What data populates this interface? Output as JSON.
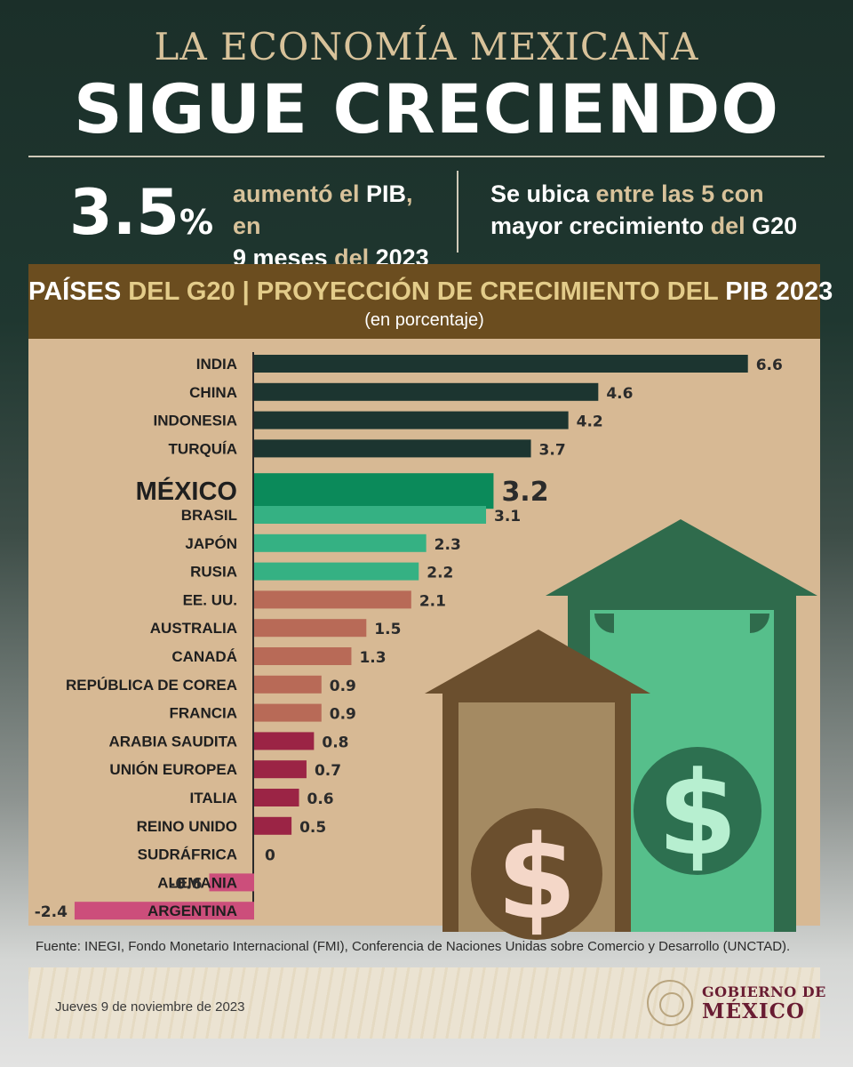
{
  "header": {
    "kicker": "LA ECONOMÍA MEXICANA",
    "headline": "SIGUE CRECIENDO"
  },
  "stat": {
    "value": "3.5",
    "unit": "%",
    "text_a": "aumentó el ",
    "text_b": "PIB",
    "text_c": ", en",
    "text_d": "9 meses ",
    "text_e": "del ",
    "text_f": "2023"
  },
  "ranking": {
    "text_a": "Se ubica ",
    "text_b": "entre las 5 con",
    "text_c": "mayor crecimiento ",
    "text_d": "del ",
    "text_e": "G20"
  },
  "panel": {
    "title_a": "PAÍSES ",
    "title_b": "DEL G20 | ",
    "title_c": "PROYECCIÓN DE CRECIMIENTO DEL ",
    "title_d": "PIB 2023",
    "subtitle": "(en porcentaje)"
  },
  "chart_data": {
    "type": "bar",
    "orientation": "horizontal",
    "title": "PAÍSES DEL G20 | PROYECCIÓN DE CRECIMIENTO DEL PIB 2023",
    "subtitle": "(en porcentaje)",
    "categories": [
      "INDIA",
      "CHINA",
      "INDONESIA",
      "TURQUÍA",
      "MÉXICO",
      "BRASIL",
      "JAPÓN",
      "RUSIA",
      "EE. UU.",
      "AUSTRALIA",
      "CANADÁ",
      "REPÚBLICA DE COREA",
      "FRANCIA",
      "ARABIA SAUDITA",
      "UNIÓN EUROPEA",
      "ITALIA",
      "REINO UNIDO",
      "SUDRÁFRICA",
      "ALEMANIA",
      "ARGENTINA"
    ],
    "values": [
      6.6,
      4.6,
      4.2,
      3.7,
      3.2,
      3.1,
      2.3,
      2.2,
      2.1,
      1.5,
      1.3,
      0.9,
      0.9,
      0.8,
      0.7,
      0.6,
      0.5,
      0,
      -0.6,
      -2.4
    ],
    "value_labels": [
      "6.6",
      "4.6",
      "4.2",
      "3.7",
      "3.2",
      "3.1",
      "2.3",
      "2.2",
      "2.1",
      "1.5",
      "1.3",
      "0.9",
      "0.9",
      "0.8",
      "0.7",
      "0.6",
      "0.5",
      "0",
      "-0.6",
      "-2.4"
    ],
    "highlight": "MÉXICO",
    "colors": [
      "#1c3530",
      "#1c3530",
      "#1c3530",
      "#1c3530",
      "#0b8a5a",
      "#35b183",
      "#35b183",
      "#35b183",
      "#b86a57",
      "#b86a57",
      "#b86a57",
      "#b86a57",
      "#b86a57",
      "#9b2445",
      "#9b2445",
      "#9b2445",
      "#9b2445",
      "#9b2445",
      "#cc4e7b",
      "#cc4e7b"
    ],
    "xlim": [
      -2.4,
      6.6
    ],
    "grid": false,
    "legend": "none"
  },
  "footer": {
    "source": "Fuente: INEGI, Fondo Monetario Internacional (FMI), Conferencia de Naciones Unidas sobre Comercio y Desarrollo (UNCTAD).",
    "date": "Jueves 9 de noviembre de 2023",
    "gov_line1": "GOBIERNO DE",
    "gov_line2": "MÉXICO"
  },
  "icons": [
    "money-house-icon",
    "dollar-sign-icon",
    "government-seal-icon"
  ]
}
